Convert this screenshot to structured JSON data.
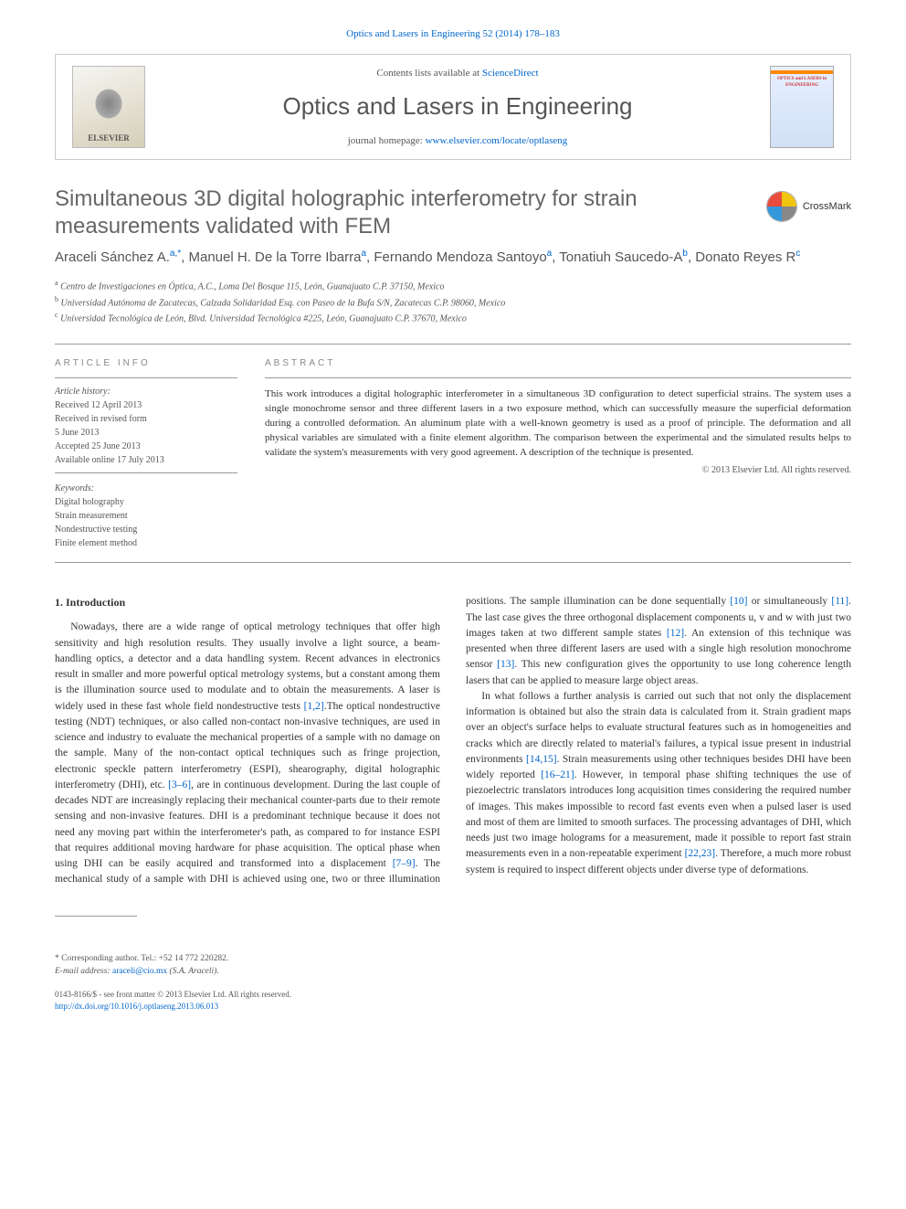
{
  "header": {
    "citation": "Optics and Lasers in Engineering 52 (2014) 178–183",
    "contents_prefix": "Contents lists available at ",
    "contents_link": "ScienceDirect",
    "journal_title": "Optics and Lasers in Engineering",
    "homepage_prefix": "journal homepage: ",
    "homepage_link": "www.elsevier.com/locate/optlaseng",
    "publisher_logo": "ELSEVIER",
    "cover_text": "OPTICS and LASERS in ENGINEERING"
  },
  "crossmark_label": "CrossMark",
  "article": {
    "title": "Simultaneous 3D digital holographic interferometry for strain measurements validated with FEM",
    "authors_html": "Araceli Sánchez A.<span class='sup'>a,</span><span class='sup sup-star'>*</span>, Manuel H. De la Torre Ibarra<span class='sup'>a</span>, Fernando Mendoza Santoyo<span class='sup'>a</span>, Tonatiuh Saucedo-A<span class='sup'>b</span>, Donato Reyes R<span class='sup'>c</span>",
    "affiliations": [
      {
        "sup": "a",
        "text": "Centro de Investigaciones en Óptica, A.C., Loma Del Bosque 115, León, Guanajuato C.P. 37150, Mexico"
      },
      {
        "sup": "b",
        "text": "Universidad Autónoma de Zacatecas, Calzada Solidaridad Esq. con Paseo de la Bufa S/N, Zacatecas C.P. 98060, Mexico"
      },
      {
        "sup": "c",
        "text": "Universidad Tecnológica de León, Blvd. Universidad Tecnológica #225, León, Guanajuato C.P. 37670, Mexico"
      }
    ]
  },
  "article_info": {
    "label": "ARTICLE INFO",
    "history_label": "Article history:",
    "history": [
      "Received 12 April 2013",
      "Received in revised form",
      "5 June 2013",
      "Accepted 25 June 2013",
      "Available online 17 July 2013"
    ],
    "keywords_label": "Keywords:",
    "keywords": [
      "Digital holography",
      "Strain measurement",
      "Nondestructive testing",
      "Finite element method"
    ]
  },
  "abstract": {
    "label": "ABSTRACT",
    "text": "This work introduces a digital holographic interferometer in a simultaneous 3D configuration to detect superficial strains. The system uses a single monochrome sensor and three different lasers in a two exposure method, which can successfully measure the superficial deformation during a controlled deformation. An aluminum plate with a well-known geometry is used as a proof of principle. The deformation and all physical variables are simulated with a finite element algorithm. The comparison between the experimental and the simulated results helps to validate the system's measurements with very good agreement. A description of the technique is presented.",
    "copyright": "© 2013 Elsevier Ltd. All rights reserved."
  },
  "body": {
    "section_heading": "1. Introduction",
    "para1_a": "Nowadays, there are a wide range of optical metrology techniques that offer high sensitivity and high resolution results. They usually involve a light source, a beam-handling optics, a detector and a data handling system. Recent advances in electronics result in smaller and more powerful optical metrology systems, but a constant among them is the illumination source used to modulate and to obtain the measurements. A laser is widely used in these fast whole field nondestructive tests ",
    "cite1": "[1,2]",
    "para1_b": ".The optical nondestructive testing (NDT) techniques, or also called non-contact non-invasive techniques, are used in science and industry to evaluate the mechanical properties of a sample with no damage on the sample. Many of the non-contact optical techniques such as fringe projection, electronic speckle pattern interferometry (ESPI), shearography, digital holographic interferometry (DHI), etc. ",
    "cite2": "[3–6]",
    "para1_c": ", are in continuous development. During the last couple of decades NDT are increasingly replacing their mechanical counter-parts due to their remote sensing and non-invasive features. DHI is a predominant technique because it does not need any moving part within the interferometer's path, as compared to for instance ESPI that requires additional moving hardware for phase acquisition. The optical phase when using DHI can be easily acquired and ",
    "para2_a": "transformed into a displacement ",
    "cite3": "[7–9]",
    "para2_b": ". The mechanical study of a sample with DHI is achieved using one, two or three illumination positions. The sample illumination can be done sequentially ",
    "cite4": "[10]",
    "para2_c": " or simultaneously ",
    "cite5": "[11]",
    "para2_d": ". The last case gives the three orthogonal displacement components u, v and w with just two images taken at two different sample states ",
    "cite6": "[12]",
    "para2_e": ". An extension of this technique was presented when three different lasers are used with a single high resolution monochrome sensor ",
    "cite7": "[13]",
    "para2_f": ". This new configuration gives the opportunity to use long coherence length lasers that can be applied to measure large object areas.",
    "para3_a": "In what follows a further analysis is carried out such that not only the displacement information is obtained but also the strain data is calculated from it. Strain gradient maps over an object's surface helps to evaluate structural features such as in homogeneities and cracks which are directly related to material's failures, a typical issue present in industrial environments ",
    "cite8": "[14,15]",
    "para3_b": ". Strain measurements using other techniques besides DHI have been widely reported ",
    "cite9": "[16–21]",
    "para3_c": ". However, in temporal phase shifting techniques the use of piezoelectric translators introduces long acquisition times considering the required number of images. This makes impossible to record fast events even when a pulsed laser is used and most of them are limited to smooth surfaces. The processing advantages of DHI, which needs just two image holograms for a measurement, made it possible to report fast strain measurements even in a non-repeatable experiment ",
    "cite10": "[22,23]",
    "para3_d": ". Therefore, a much more robust system is required to inspect different objects under diverse type of deformations."
  },
  "footer": {
    "corr_sup": "*",
    "corr_text": "Corresponding author. Tel.: +52 14 772 220282.",
    "email_label": "E-mail address: ",
    "email": "araceli@cio.mx",
    "email_name": " (S.A. Araceli).",
    "issn": "0143-8166/$ - see front matter © 2013 Elsevier Ltd. All rights reserved.",
    "doi_prefix": "http://dx.doi.org/",
    "doi": "10.1016/j.optlaseng.2013.06.013"
  }
}
